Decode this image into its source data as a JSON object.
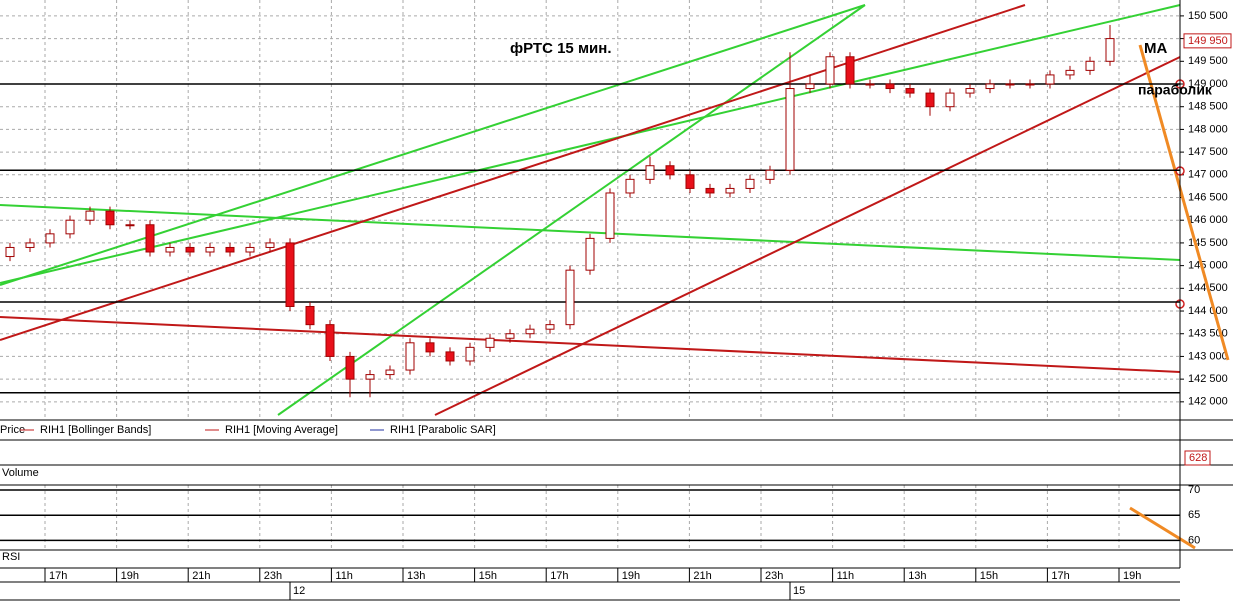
{
  "chart_data": {
    "type": "candlestick",
    "title": "фРТС   15 мин.",
    "annotations": [
      "MA",
      "параболик"
    ],
    "open": [
      145200,
      145400,
      145500,
      145700,
      146000,
      146200,
      145900,
      145900,
      145300,
      145400,
      145300,
      145400,
      145300,
      145400,
      145500,
      144100,
      143700,
      143000,
      142500,
      142600,
      142700,
      143300,
      143100,
      142900,
      143200,
      143400,
      143500,
      143600,
      143700,
      144900,
      145600,
      146600,
      146900,
      147200,
      147000,
      146700,
      146600,
      146700,
      146900,
      147100,
      148900,
      149000,
      149600,
      149000,
      149000,
      148900,
      148800,
      148500,
      148800,
      148900,
      149000,
      149000,
      149000,
      149200,
      149300,
      149500
    ],
    "high": [
      145500,
      145600,
      145800,
      146100,
      146300,
      146300,
      146000,
      146000,
      145500,
      145500,
      145500,
      145500,
      145500,
      145600,
      145600,
      144200,
      143800,
      143100,
      142700,
      142800,
      143400,
      143400,
      143200,
      143300,
      143500,
      143600,
      143700,
      143800,
      145000,
      145700,
      146700,
      147000,
      147400,
      147300,
      147100,
      146800,
      146800,
      147000,
      147200,
      149700,
      149200,
      149700,
      149700,
      149100,
      149100,
      149000,
      148900,
      148900,
      149000,
      149100,
      149100,
      149100,
      149300,
      149400,
      149600,
      150300
    ],
    "low": [
      145100,
      145300,
      145400,
      145600,
      145900,
      145800,
      145800,
      145200,
      145200,
      145200,
      145200,
      145200,
      145200,
      145300,
      144000,
      143600,
      142900,
      142100,
      142100,
      142500,
      142600,
      143000,
      142800,
      142800,
      143100,
      143300,
      143400,
      143500,
      143600,
      144800,
      145500,
      146500,
      146800,
      146900,
      146600,
      146500,
      146500,
      146600,
      146800,
      147000,
      148800,
      148900,
      148900,
      148900,
      148800,
      148700,
      148300,
      148400,
      148700,
      148800,
      148900,
      148900,
      148900,
      149100,
      149200,
      149400
    ],
    "close": [
      145400,
      145500,
      145700,
      146000,
      146200,
      145900,
      145900,
      145300,
      145400,
      145300,
      145400,
      145300,
      145400,
      145500,
      144100,
      143700,
      143000,
      142500,
      142600,
      142700,
      143300,
      143100,
      142900,
      143200,
      143400,
      143500,
      143600,
      143700,
      144900,
      145600,
      146600,
      146900,
      147200,
      147000,
      146700,
      146600,
      146700,
      146900,
      147100,
      148900,
      149000,
      149600,
      149000,
      149000,
      148900,
      148800,
      148500,
      148800,
      148900,
      149000,
      149000,
      149000,
      149200,
      149300,
      149500,
      150000
    ],
    "up_color": "#ffffff",
    "down_color": "#e8101a",
    "edge_color": "#a00000",
    "levels": [
      149000,
      147100,
      144200,
      142200
    ],
    "last_price": {
      "value": 149950,
      "label": "149 950"
    },
    "ylim": [
      141600,
      150850
    ],
    "yticks": [
      {
        "value": 142000,
        "label": "142 000"
      },
      {
        "value": 142500,
        "label": "142 500"
      },
      {
        "value": 143000,
        "label": "143 000"
      },
      {
        "value": 143500,
        "label": "143 500"
      },
      {
        "value": 144000,
        "label": "144 000"
      },
      {
        "value": 144500,
        "label": "144 500"
      },
      {
        "value": 145000,
        "label": "145 000"
      },
      {
        "value": 145500,
        "label": "145 500"
      },
      {
        "value": 146000,
        "label": "146 000"
      },
      {
        "value": 146500,
        "label": "146 500"
      },
      {
        "value": 147000,
        "label": "147 000"
      },
      {
        "value": 147500,
        "label": "147 500"
      },
      {
        "value": 148000,
        "label": "148 000"
      },
      {
        "value": 148500,
        "label": "148 500"
      },
      {
        "value": 149000,
        "label": "149 000"
      },
      {
        "value": 149500,
        "label": "149 500"
      },
      {
        "value": 150000,
        "label": "150 000"
      },
      {
        "value": 150500,
        "label": "150 500"
      }
    ],
    "legend": [
      "Price",
      "RIH1 [Bollinger Bands]",
      "RIH1 [Moving Average]",
      "RIH1 [Parabolic SAR]"
    ],
    "volume_label": "Volume",
    "volume_value": 628,
    "rsi_label": "RSI",
    "rsi_ylim": [
      58.1,
      71
    ],
    "rsi_yticks": [
      60,
      65,
      70
    ],
    "time_labels": [
      "17h",
      "19h",
      "21h",
      "23h",
      "11h",
      "13h",
      "15h",
      "17h",
      "19h",
      "21h",
      "23h",
      "11h",
      "13h",
      "15h",
      "17h",
      "19h"
    ],
    "dates": [
      "12",
      "15"
    ]
  }
}
